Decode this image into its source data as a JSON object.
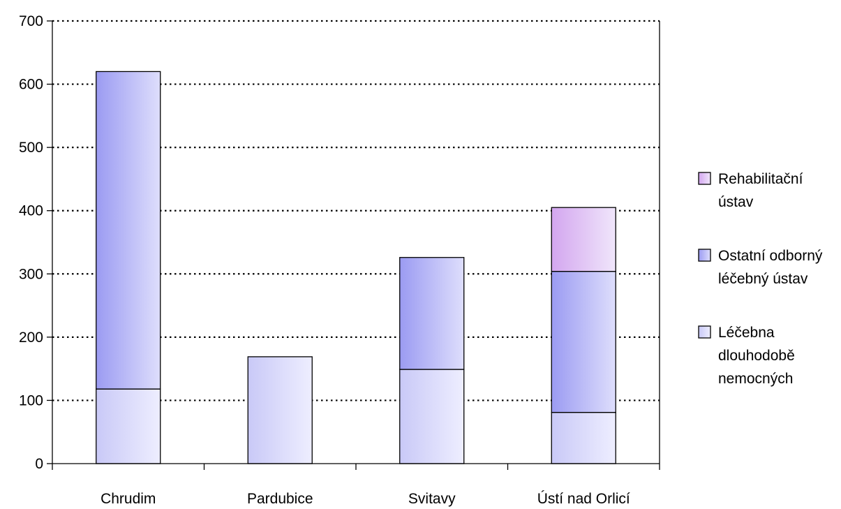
{
  "chart_data": {
    "type": "bar",
    "stacked": true,
    "title": "",
    "xlabel": "",
    "ylabel": "",
    "categories": [
      "Chrudim",
      "Pardubice",
      "Svitavy",
      "Ústí nad Orlicí"
    ],
    "series": [
      {
        "name": "Léčebna dlouhodobě nemocných",
        "values": [
          118,
          169,
          149,
          81
        ],
        "color_dark": "#c9c9f7",
        "color_light": "#eeeeff"
      },
      {
        "name": "Ostatní odborný léčebný ústav",
        "values": [
          502,
          0,
          177,
          223
        ],
        "color_dark": "#9b9bf2",
        "color_light": "#dedefc"
      },
      {
        "name": "Rehabilitační ústav",
        "values": [
          0,
          0,
          0,
          101
        ],
        "color_dark": "#d3a6ef",
        "color_light": "#f0e6fb"
      }
    ],
    "ylim": [
      0,
      700
    ],
    "yticks": [
      0,
      100,
      200,
      300,
      400,
      500,
      600,
      700
    ],
    "grid": true,
    "legend_position": "right",
    "legend_lines": [
      [
        "Rehabilitační",
        "ústav"
      ],
      [
        "Ostatní odborný",
        "léčebný ústav"
      ],
      [
        "Léčebna",
        "dlouhodobě",
        "nemocných"
      ]
    ]
  }
}
